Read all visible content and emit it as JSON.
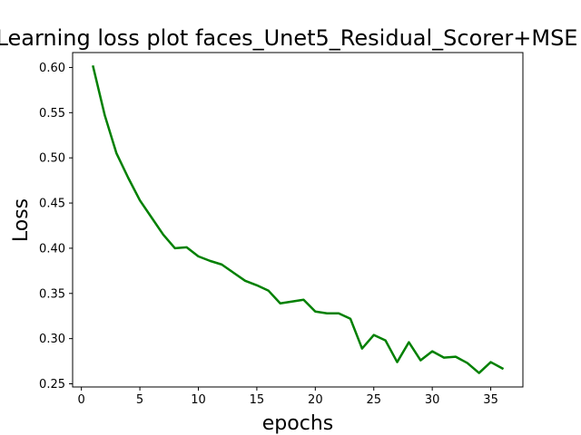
{
  "chart_data": {
    "type": "line",
    "title": "Learning loss plot faces_Unet5_Residual_Scorer+MSE",
    "xlabel": "epochs",
    "ylabel": "Loss",
    "xlim": [
      -0.75,
      37.75
    ],
    "ylim": [
      0.2465,
      0.6165
    ],
    "xticks": [
      0,
      5,
      10,
      15,
      20,
      25,
      30,
      35
    ],
    "yticks": [
      0.25,
      0.3,
      0.35,
      0.4,
      0.45,
      0.5,
      0.55,
      0.6
    ],
    "ytick_labels": [
      "0.25",
      "0.30",
      "0.35",
      "0.40",
      "0.45",
      "0.50",
      "0.55",
      "0.60"
    ],
    "grid": false,
    "series": [
      {
        "color": "#008000",
        "x": [
          1,
          2,
          3,
          4,
          5,
          6,
          7,
          8,
          9,
          10,
          11,
          12,
          13,
          14,
          15,
          16,
          17,
          18,
          19,
          20,
          21,
          22,
          23,
          24,
          25,
          26,
          27,
          28,
          29,
          30,
          31,
          32,
          33,
          34,
          35,
          36
        ],
        "y": [
          0.601,
          0.547,
          0.505,
          0.478,
          0.453,
          0.434,
          0.415,
          0.4,
          0.401,
          0.391,
          0.386,
          0.382,
          0.373,
          0.364,
          0.359,
          0.353,
          0.339,
          0.341,
          0.343,
          0.33,
          0.328,
          0.328,
          0.322,
          0.289,
          0.304,
          0.298,
          0.274,
          0.296,
          0.276,
          0.286,
          0.279,
          0.28,
          0.273,
          0.262,
          0.274,
          0.267
        ]
      }
    ]
  }
}
